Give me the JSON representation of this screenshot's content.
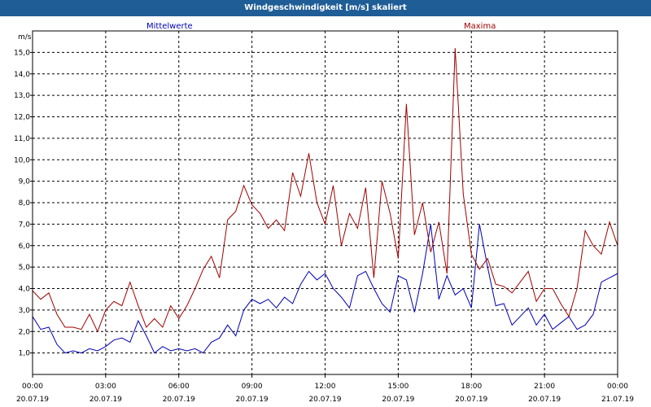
{
  "window": {
    "title": "Windgeschwindigkeit [m/s] skaliert"
  },
  "chart_data": {
    "type": "line",
    "title": "Windgeschwindigkeit [m/s] skaliert",
    "ylabel": "m/s",
    "ylim": [
      0,
      16
    ],
    "xlim": [
      "2019-07-20 00:00",
      "2019-07-21 00:00"
    ],
    "grid": true,
    "legend": [
      "Mittelwerte",
      "Maxima"
    ],
    "y_ticks": [
      "1,0",
      "2,0",
      "3,0",
      "4,0",
      "5,0",
      "6,0",
      "7,0",
      "8,0",
      "9,0",
      "10,0",
      "11,0",
      "12,0",
      "13,0",
      "14,0",
      "15,0"
    ],
    "x_ticks": [
      {
        "time": "00:00",
        "date": "20.07.19"
      },
      {
        "time": "03:00",
        "date": "20.07.19"
      },
      {
        "time": "06:00",
        "date": "20.07.19"
      },
      {
        "time": "09:00",
        "date": "20.07.19"
      },
      {
        "time": "12:00",
        "date": "20.07.19"
      },
      {
        "time": "15:00",
        "date": "20.07.19"
      },
      {
        "time": "18:00",
        "date": "20.07.19"
      },
      {
        "time": "21:00",
        "date": "20.07.19"
      },
      {
        "time": "00:00",
        "date": "21.07.19"
      }
    ],
    "series": [
      {
        "name": "Mittelwerte",
        "color": "#0000b4",
        "x": [
          "2019-07-20 00:00",
          "2019-07-20 00:20",
          "2019-07-20 00:40",
          "2019-07-20 01:00",
          "2019-07-20 01:20",
          "2019-07-20 01:40",
          "2019-07-20 02:00",
          "2019-07-20 02:20",
          "2019-07-20 02:40",
          "2019-07-20 03:00",
          "2019-07-20 03:20",
          "2019-07-20 03:40",
          "2019-07-20 04:00",
          "2019-07-20 04:20",
          "2019-07-20 04:40",
          "2019-07-20 05:00",
          "2019-07-20 05:20",
          "2019-07-20 05:40",
          "2019-07-20 06:00",
          "2019-07-20 06:20",
          "2019-07-20 06:40",
          "2019-07-20 07:00",
          "2019-07-20 07:20",
          "2019-07-20 07:40",
          "2019-07-20 08:00",
          "2019-07-20 08:20",
          "2019-07-20 08:40",
          "2019-07-20 09:00",
          "2019-07-20 09:20",
          "2019-07-20 09:40",
          "2019-07-20 10:00",
          "2019-07-20 10:20",
          "2019-07-20 10:40",
          "2019-07-20 11:00",
          "2019-07-20 11:20",
          "2019-07-20 11:40",
          "2019-07-20 12:00",
          "2019-07-20 12:20",
          "2019-07-20 12:40",
          "2019-07-20 13:00",
          "2019-07-20 13:20",
          "2019-07-20 13:40",
          "2019-07-20 14:00",
          "2019-07-20 14:20",
          "2019-07-20 14:40",
          "2019-07-20 15:00",
          "2019-07-20 15:20",
          "2019-07-20 15:40",
          "2019-07-20 16:00",
          "2019-07-20 16:20",
          "2019-07-20 16:40",
          "2019-07-20 17:00",
          "2019-07-20 17:20",
          "2019-07-20 17:40",
          "2019-07-20 18:00",
          "2019-07-20 18:20",
          "2019-07-20 18:40",
          "2019-07-20 19:00",
          "2019-07-20 19:20",
          "2019-07-20 19:40",
          "2019-07-20 20:00",
          "2019-07-20 20:20",
          "2019-07-20 20:40",
          "2019-07-20 21:00",
          "2019-07-20 21:20",
          "2019-07-20 21:40",
          "2019-07-20 22:00",
          "2019-07-20 22:20",
          "2019-07-20 22:40",
          "2019-07-20 23:00",
          "2019-07-20 23:20",
          "2019-07-20 23:40",
          "2019-07-21 00:00"
        ],
        "values": [
          2.7,
          2.1,
          2.2,
          1.4,
          1.0,
          1.1,
          1.0,
          1.2,
          1.1,
          1.3,
          1.6,
          1.7,
          1.5,
          2.5,
          1.8,
          1.0,
          1.3,
          1.1,
          1.2,
          1.1,
          1.2,
          1.0,
          1.5,
          1.7,
          2.3,
          1.8,
          3.0,
          3.5,
          3.3,
          3.5,
          3.1,
          3.6,
          3.3,
          4.2,
          4.8,
          4.4,
          4.7,
          4.0,
          3.6,
          3.1,
          4.6,
          4.8,
          4.0,
          3.3,
          2.9,
          4.6,
          4.4,
          2.9,
          4.7,
          7.0,
          3.5,
          4.6,
          3.7,
          4.0,
          3.1,
          7.0,
          5.0,
          3.2,
          3.3,
          2.3,
          2.7,
          3.1,
          2.3,
          2.8,
          2.1,
          2.4,
          2.7,
          2.1,
          2.3,
          2.8,
          4.3,
          4.5,
          4.7
        ]
      },
      {
        "name": "Maxima",
        "color": "#a00000",
        "x": [
          "2019-07-20 00:00",
          "2019-07-20 00:20",
          "2019-07-20 00:40",
          "2019-07-20 01:00",
          "2019-07-20 01:20",
          "2019-07-20 01:40",
          "2019-07-20 02:00",
          "2019-07-20 02:20",
          "2019-07-20 02:40",
          "2019-07-20 03:00",
          "2019-07-20 03:20",
          "2019-07-20 03:40",
          "2019-07-20 04:00",
          "2019-07-20 04:20",
          "2019-07-20 04:40",
          "2019-07-20 05:00",
          "2019-07-20 05:20",
          "2019-07-20 05:40",
          "2019-07-20 06:00",
          "2019-07-20 06:20",
          "2019-07-20 06:40",
          "2019-07-20 07:00",
          "2019-07-20 07:20",
          "2019-07-20 07:40",
          "2019-07-20 08:00",
          "2019-07-20 08:20",
          "2019-07-20 08:40",
          "2019-07-20 09:00",
          "2019-07-20 09:20",
          "2019-07-20 09:40",
          "2019-07-20 10:00",
          "2019-07-20 10:20",
          "2019-07-20 10:40",
          "2019-07-20 11:00",
          "2019-07-20 11:20",
          "2019-07-20 11:40",
          "2019-07-20 12:00",
          "2019-07-20 12:20",
          "2019-07-20 12:40",
          "2019-07-20 13:00",
          "2019-07-20 13:20",
          "2019-07-20 13:40",
          "2019-07-20 14:00",
          "2019-07-20 14:20",
          "2019-07-20 14:40",
          "2019-07-20 15:00",
          "2019-07-20 15:20",
          "2019-07-20 15:40",
          "2019-07-20 16:00",
          "2019-07-20 16:20",
          "2019-07-20 16:40",
          "2019-07-20 17:00",
          "2019-07-20 17:20",
          "2019-07-20 17:40",
          "2019-07-20 18:00",
          "2019-07-20 18:20",
          "2019-07-20 18:40",
          "2019-07-20 19:00",
          "2019-07-20 19:20",
          "2019-07-20 19:40",
          "2019-07-20 20:00",
          "2019-07-20 20:20",
          "2019-07-20 20:40",
          "2019-07-20 21:00",
          "2019-07-20 21:20",
          "2019-07-20 21:40",
          "2019-07-20 22:00",
          "2019-07-20 22:20",
          "2019-07-20 22:40",
          "2019-07-20 23:00",
          "2019-07-20 23:20",
          "2019-07-20 23:40",
          "2019-07-21 00:00"
        ],
        "values": [
          3.9,
          3.5,
          3.8,
          2.8,
          2.2,
          2.2,
          2.1,
          2.8,
          2.0,
          3.0,
          3.4,
          3.2,
          4.3,
          3.2,
          2.2,
          2.6,
          2.2,
          3.2,
          2.6,
          3.2,
          4.0,
          4.9,
          5.5,
          4.5,
          7.2,
          7.6,
          8.8,
          7.9,
          7.5,
          6.8,
          7.2,
          6.7,
          9.4,
          8.3,
          10.3,
          8.0,
          7.0,
          8.8,
          6.0,
          7.5,
          6.8,
          8.7,
          4.5,
          9.0,
          7.5,
          5.4,
          12.6,
          6.5,
          8.0,
          5.7,
          7.1,
          4.7,
          15.2,
          8.4,
          5.6,
          4.9,
          5.4,
          4.2,
          4.1,
          3.8,
          4.3,
          4.8,
          3.4,
          4.0,
          4.0,
          3.3,
          2.7,
          4.0,
          6.7,
          6.0,
          5.6,
          7.1,
          6.0
        ]
      }
    ]
  }
}
